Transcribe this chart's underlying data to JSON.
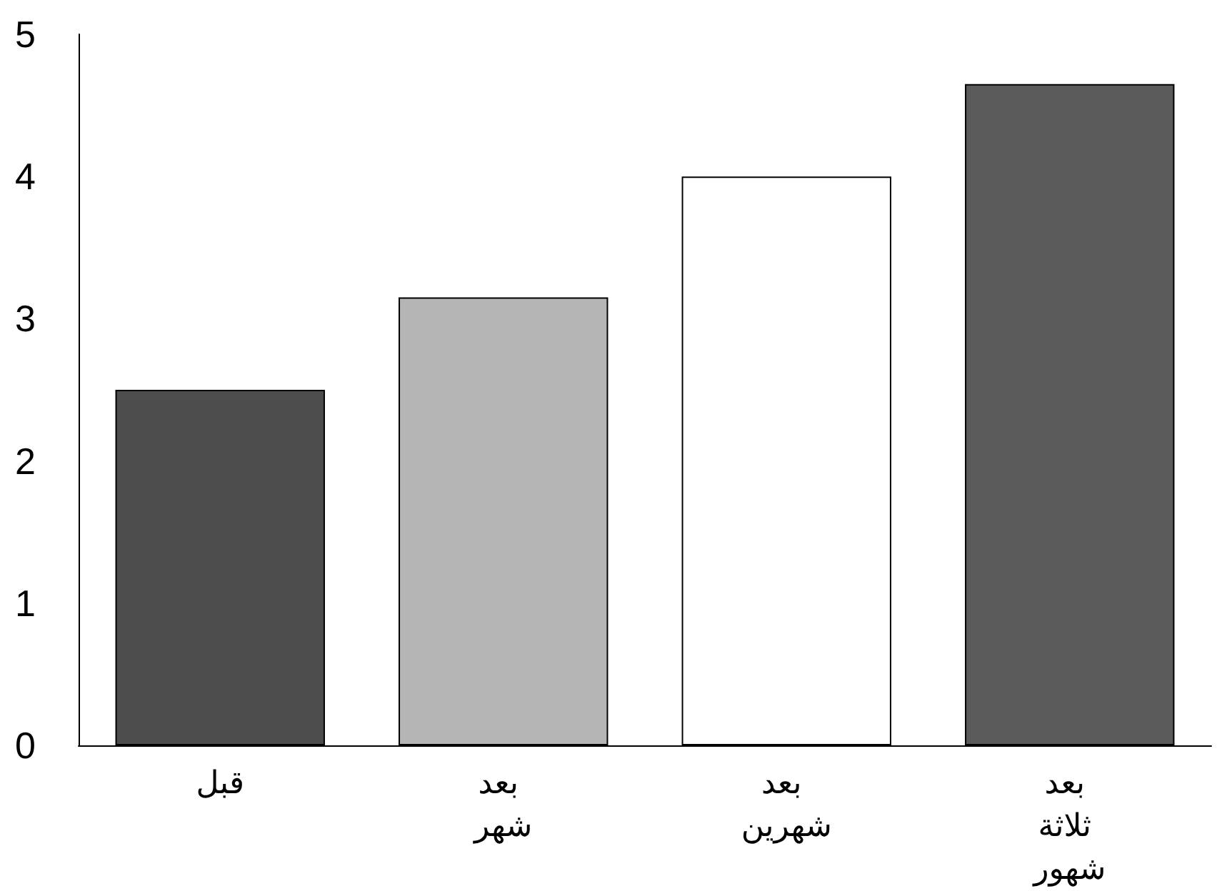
{
  "chart_data": {
    "type": "bar",
    "categories": [
      "قبل",
      "بعد شهر",
      "بعد شهرين",
      "بعد ثلاثة شهور"
    ],
    "values": [
      2.5,
      3.15,
      4.0,
      4.65
    ],
    "colors": [
      "#4d4d4d",
      "#b5b5b5",
      "#ffffff",
      "#5a5a5a"
    ],
    "ylim": [
      0,
      5
    ],
    "yticks": [
      0,
      1,
      2,
      3,
      4,
      5
    ],
    "grid": false
  }
}
